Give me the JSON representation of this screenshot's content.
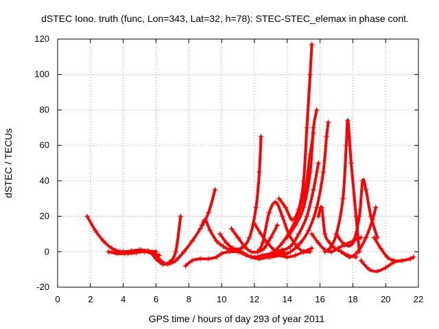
{
  "chart_data": {
    "type": "scatter",
    "title": "dSTEC Iono. truth (func, Lon=343, Lat=32, h=78): STEC-STEC_elemax in phase cont.",
    "xlabel": "GPS time / hours of day 293 of year 2011",
    "ylabel": "dSTEC  / TECUs",
    "xlim": [
      0,
      22
    ],
    "ylim": [
      -20,
      120
    ],
    "xticks": [
      "0",
      "2",
      "4",
      "6",
      "8",
      "10",
      "12",
      "14",
      "16",
      "18",
      "20",
      "22"
    ],
    "yticks": [
      "-20",
      "0",
      "20",
      "40",
      "60",
      "80",
      "100",
      "120"
    ],
    "grid": true,
    "marker": "+",
    "color": "#ff0000",
    "series": [
      {
        "x": [
          1.8,
          2.3,
          2.8,
          3.3,
          3.8,
          4.3,
          4.8,
          5.3,
          5.8,
          6.2
        ],
        "y": [
          20,
          12,
          6,
          2,
          0,
          -1,
          -0.5,
          0,
          -1,
          -2
        ]
      },
      {
        "x": [
          3.1,
          3.6,
          4.1,
          4.6,
          5.1,
          5.6,
          6.0,
          6.4,
          6.8,
          7.2,
          7.5
        ],
        "y": [
          0,
          -1,
          -1,
          0,
          1,
          0,
          -4,
          -7,
          -6,
          0,
          20
        ]
      },
      {
        "x": [
          3.5,
          4.0,
          4.5,
          5.0,
          5.5,
          6.0
        ],
        "y": [
          0.5,
          0,
          0.5,
          1,
          0.5,
          0
        ]
      },
      {
        "x": [
          6.0,
          6.3,
          6.7,
          7.2,
          7.7,
          8.2,
          8.7,
          9.2,
          9.6
        ],
        "y": [
          -2,
          -5,
          -7,
          -5,
          0,
          6,
          13,
          22,
          35
        ]
      },
      {
        "x": [
          7.8,
          8.2,
          8.7,
          9.2,
          9.7,
          10.0,
          10.5,
          11.0
        ],
        "y": [
          -8,
          -5,
          -4,
          -4,
          -3,
          -1,
          0,
          0
        ]
      },
      {
        "x": [
          8.8,
          9.0,
          9.3,
          9.7,
          10.1,
          10.5,
          11.0,
          11.5,
          12.0,
          12.5,
          13.0
        ],
        "y": [
          15,
          18,
          12,
          6,
          3,
          1,
          0,
          -2,
          -3,
          -2,
          -1
        ]
      },
      {
        "x": [
          9.9,
          10.3,
          10.7,
          11.2,
          11.7,
          12.1,
          12.3,
          12.4
        ],
        "y": [
          10,
          5,
          2,
          2,
          8,
          25,
          45,
          65
        ]
      },
      {
        "x": [
          10.6,
          11.0,
          11.4,
          11.8,
          12.2,
          12.6,
          13.0,
          13.4
        ],
        "y": [
          13,
          8,
          3,
          0,
          0,
          2,
          8,
          15
        ]
      },
      {
        "x": [
          10.6,
          11.2,
          11.8,
          12.3,
          12.8,
          13.3,
          13.8
        ],
        "y": [
          2,
          0,
          -3,
          -4,
          -3,
          -1,
          0
        ]
      },
      {
        "x": [
          12.0,
          12.4,
          12.8,
          13.2,
          13.6,
          14.0,
          14.5,
          15.0,
          15.5
        ],
        "y": [
          16,
          10,
          5,
          1,
          -2,
          -3,
          -2,
          0,
          2
        ]
      },
      {
        "x": [
          12.2,
          12.5,
          12.9,
          13.3,
          13.7,
          14.1,
          14.6,
          15.0,
          15.4
        ],
        "y": [
          0,
          5,
          22,
          28,
          20,
          10,
          3,
          0,
          0
        ]
      },
      {
        "x": [
          12.9,
          13.2,
          13.7,
          14.2,
          14.7,
          15.1,
          15.4,
          15.6
        ],
        "y": [
          -3,
          0,
          5,
          12,
          22,
          35,
          55,
          67
        ]
      },
      {
        "x": [
          13.5,
          13.9,
          14.3,
          14.7,
          15.0,
          15.2,
          15.4,
          15.5
        ],
        "y": [
          30,
          25,
          18,
          24,
          40,
          70,
          100,
          117
        ]
      },
      {
        "x": [
          13.2,
          13.7,
          14.2,
          14.7,
          15.2,
          15.6,
          15.9
        ],
        "y": [
          0,
          1,
          3,
          10,
          20,
          35,
          50
        ]
      },
      {
        "x": [
          13.0,
          13.6,
          14.2,
          14.8,
          15.3,
          15.8,
          16.2,
          16.4,
          16.5
        ],
        "y": [
          -3,
          -2,
          0,
          5,
          12,
          25,
          45,
          65,
          73
        ]
      },
      {
        "x": [
          14.0,
          14.5,
          15.0,
          15.4,
          15.6,
          15.8
        ],
        "y": [
          8,
          15,
          25,
          45,
          70,
          80
        ]
      },
      {
        "x": [
          15.5,
          15.9,
          16.3,
          16.7,
          17.1,
          17.5,
          18.0,
          18.5
        ],
        "y": [
          10,
          5,
          1,
          0,
          2,
          4,
          6,
          8
        ]
      },
      {
        "x": [
          15.9,
          16.1,
          16.3,
          16.6,
          16.9,
          17.3,
          17.7,
          18.2
        ],
        "y": [
          20,
          25,
          10,
          5,
          2,
          0,
          -2,
          -3
        ]
      },
      {
        "x": [
          16.3,
          16.6,
          17.0,
          17.4,
          17.6,
          17.7,
          17.9,
          18.2,
          18.4
        ],
        "y": [
          0,
          2,
          10,
          30,
          60,
          74,
          50,
          20,
          0
        ]
      },
      {
        "x": [
          17.0,
          17.5,
          18.0,
          18.4,
          18.6,
          18.8,
          19.1,
          19.5
        ],
        "y": [
          10,
          4,
          5,
          20,
          40,
          35,
          20,
          8
        ]
      },
      {
        "x": [
          17.3,
          17.8,
          18.3,
          18.8,
          19.2,
          19.4
        ],
        "y": [
          0,
          -3,
          0,
          8,
          18,
          25
        ]
      },
      {
        "x": [
          18.5,
          19.0,
          19.5,
          20.0,
          20.5,
          21.0,
          21.5,
          21.7
        ],
        "y": [
          -5,
          -10,
          -11,
          -9,
          -6,
          -5,
          -4,
          -3
        ]
      },
      {
        "x": [
          19.3,
          19.7,
          20.1,
          20.5,
          21.0,
          21.5
        ],
        "y": [
          8,
          2,
          -3,
          -5,
          -5,
          -4
        ]
      }
    ]
  }
}
